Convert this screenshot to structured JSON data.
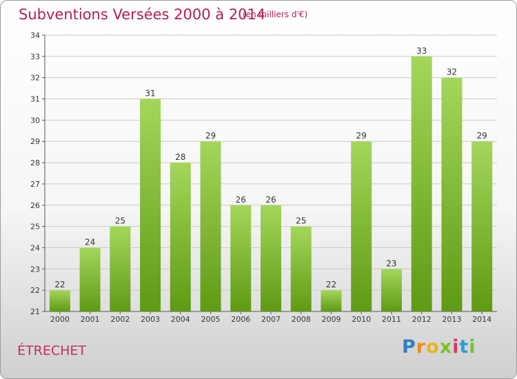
{
  "header": {
    "title": "Subventions Versées 2000 à 2014",
    "subtitle": "(en milliers d'€)"
  },
  "commune": "ÉTRECHET",
  "logo": {
    "text": "Proxiti",
    "colors": [
      "#2f7fc0",
      "#f28c1a",
      "#e8b51c",
      "#7cbf2a",
      "#d43a6a",
      "#2a9fd6",
      "#7cbf2a"
    ]
  },
  "colors": {
    "title": "#b0214e",
    "bar_top": "#a4d65a",
    "bar_bottom": "#5f9a14",
    "grid": "#c8c8c8"
  },
  "chart_data": {
    "type": "bar",
    "categories": [
      "2000",
      "2001",
      "2002",
      "2003",
      "2004",
      "2005",
      "2006",
      "2007",
      "2008",
      "2009",
      "2010",
      "2011",
      "2012",
      "2013",
      "2014"
    ],
    "values": [
      22,
      24,
      25,
      31,
      28,
      29,
      26,
      26,
      25,
      22,
      29,
      23,
      33,
      32,
      29
    ],
    "title": "Subventions Versées 2000 à 2014",
    "xlabel": "",
    "ylabel": "",
    "ylim": [
      21,
      34
    ],
    "yticks": [
      21,
      22,
      23,
      24,
      25,
      26,
      27,
      28,
      29,
      30,
      31,
      32,
      33,
      34
    ],
    "grid": true,
    "data_labels": true
  }
}
